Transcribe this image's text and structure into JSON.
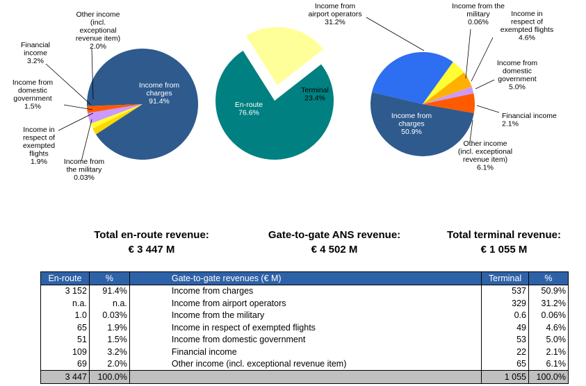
{
  "chart_data": [
    {
      "type": "pie",
      "slices": [
        {
          "label": "Income from\ncharges\n91.4%",
          "value": 91.4,
          "color": "#2e5a8e"
        },
        {
          "label": "Income from\nthe military\n0.03%",
          "value": 0.03,
          "color": "#7fa7d8"
        },
        {
          "label": "Income in\nrespect of\nexempted\nflights\n1.9%",
          "value": 1.9,
          "color": "#ffd700"
        },
        {
          "label": "Income from\ndomestic\ngovernment\n1.5%",
          "value": 1.5,
          "color": "#ffff33"
        },
        {
          "label": "Financial\nincome\n3.2%",
          "value": 3.2,
          "color": "#cc99ff"
        },
        {
          "label": "Other income\n(incl.\nexceptional\nrevenue item)\n2.0%",
          "value": 2.0,
          "color": "#ff5a00"
        }
      ]
    },
    {
      "type": "pie",
      "slices": [
        {
          "label": "En-route\n76.6%",
          "value": 76.6,
          "color": "#008080"
        },
        {
          "label": "Terminal\n23.4%",
          "value": 23.4,
          "color": "#ffff99"
        }
      ]
    },
    {
      "type": "pie",
      "slices": [
        {
          "label": "Income from\ncharges\n50.9%",
          "value": 50.9,
          "color": "#2e5a8e"
        },
        {
          "label": "Income from\nairport operators\n31.2%",
          "value": 31.2,
          "color": "#2e6ef0"
        },
        {
          "label": "Income from the\nmilitary\n0.06%",
          "value": 0.06,
          "color": "#7fa7d8"
        },
        {
          "label": "Income in\nrespect of\nexempted flights\n4.6%",
          "value": 4.6,
          "color": "#ffff33"
        },
        {
          "label": "Income from\ndomestic\ngovernment\n5.0%",
          "value": 5.0,
          "color": "#ffb000"
        },
        {
          "label": "Financial income\n2.1%",
          "value": 2.1,
          "color": "#cc99ff"
        },
        {
          "label": "Other income\n(incl. exceptional\nrevenue item)\n6.1%",
          "value": 6.1,
          "color": "#ff5a00"
        }
      ]
    }
  ],
  "summaries": {
    "enroute": {
      "title": "Total en-route revenue:",
      "value": "€ 3 447  M"
    },
    "g2g": {
      "title": "Gate-to-gate ANS revenue:",
      "value": "€ 4 502 M"
    },
    "terminal": {
      "title": "Total terminal revenue:",
      "value": "€ 1 055  M"
    }
  },
  "table": {
    "headers": [
      "En-route",
      "%",
      "Gate-to-gate revenues (€ M)",
      "Terminal",
      "%"
    ],
    "rows": [
      [
        "3 152",
        "91.4%",
        "Income from charges",
        "537",
        "50.9%"
      ],
      [
        "n.a.",
        "n.a.",
        "Income from airport operators",
        "329",
        "31.2%"
      ],
      [
        "1.0",
        "0.03%",
        "Income from the military",
        "0.6",
        "0.06%"
      ],
      [
        "65",
        "1.9%",
        "Income in respect of exempted flights",
        "49",
        "4.6%"
      ],
      [
        "51",
        "1.5%",
        "Income from domestic government",
        "53",
        "5.0%"
      ],
      [
        "109",
        "3.2%",
        "Financial income",
        "22",
        "2.1%"
      ],
      [
        "69",
        "2.0%",
        "Other income (incl. exceptional revenue item)",
        "65",
        "6.1%"
      ]
    ],
    "total": [
      "3 447",
      "100.0%",
      "",
      "1 055",
      "100.0%"
    ]
  }
}
